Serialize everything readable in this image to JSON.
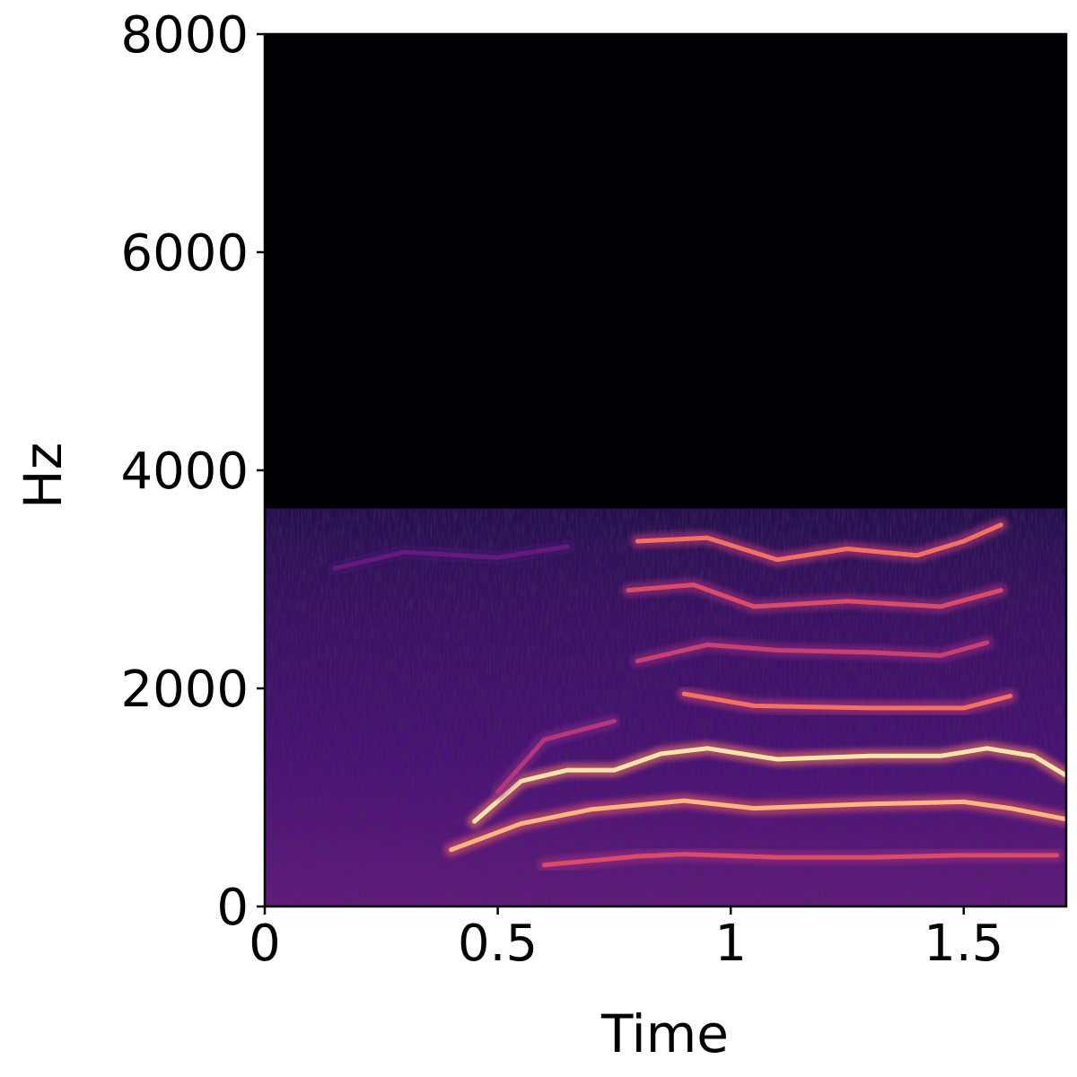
{
  "chart_data": {
    "type": "heatmap",
    "subtype": "spectrogram",
    "colormap": "magma",
    "xlabel": "Time",
    "ylabel": "Hz",
    "xlim": [
      0,
      1.72
    ],
    "ylim": [
      0,
      8000
    ],
    "x_ticks": [
      {
        "value": 0,
        "label": "0"
      },
      {
        "value": 0.5,
        "label": "0.5"
      },
      {
        "value": 1,
        "label": "1"
      },
      {
        "value": 1.5,
        "label": "1.5"
      }
    ],
    "y_ticks": [
      {
        "value": 0,
        "label": "0"
      },
      {
        "value": 2000,
        "label": "2000"
      },
      {
        "value": 4000,
        "label": "4000"
      },
      {
        "value": 6000,
        "label": "6000"
      },
      {
        "value": 8000,
        "label": "8000"
      }
    ],
    "energy_cutoff_hz": 3650,
    "harmonic_tracks": [
      {
        "points": [
          [
            0.6,
            380
          ],
          [
            0.8,
            460
          ],
          [
            0.9,
            480
          ],
          [
            1.1,
            450
          ],
          [
            1.3,
            450
          ],
          [
            1.5,
            470
          ],
          [
            1.7,
            470
          ]
        ],
        "intensity": 0.6
      },
      {
        "points": [
          [
            0.4,
            520
          ],
          [
            0.55,
            760
          ],
          [
            0.7,
            890
          ],
          [
            0.9,
            970
          ],
          [
            1.05,
            900
          ],
          [
            1.3,
            940
          ],
          [
            1.5,
            960
          ],
          [
            1.6,
            900
          ],
          [
            1.72,
            800
          ]
        ],
        "intensity": 0.85
      },
      {
        "points": [
          [
            0.45,
            780
          ],
          [
            0.55,
            1150
          ],
          [
            0.65,
            1250
          ],
          [
            0.75,
            1250
          ],
          [
            0.85,
            1400
          ],
          [
            0.95,
            1450
          ],
          [
            1.1,
            1350
          ],
          [
            1.3,
            1380
          ],
          [
            1.45,
            1380
          ],
          [
            1.55,
            1450
          ],
          [
            1.65,
            1380
          ],
          [
            1.72,
            1200
          ]
        ],
        "intensity": 0.95
      },
      {
        "points": [
          [
            0.5,
            1050
          ],
          [
            0.6,
            1530
          ],
          [
            0.75,
            1700
          ]
        ],
        "intensity": 0.5
      },
      {
        "points": [
          [
            0.9,
            1950
          ],
          [
            1.05,
            1840
          ],
          [
            1.3,
            1820
          ],
          [
            1.5,
            1820
          ],
          [
            1.6,
            1930
          ]
        ],
        "intensity": 0.7
      },
      {
        "points": [
          [
            0.8,
            2250
          ],
          [
            0.95,
            2400
          ],
          [
            1.1,
            2350
          ],
          [
            1.3,
            2330
          ],
          [
            1.45,
            2300
          ],
          [
            1.55,
            2420
          ]
        ],
        "intensity": 0.55
      },
      {
        "points": [
          [
            0.78,
            2900
          ],
          [
            0.92,
            2950
          ],
          [
            1.05,
            2750
          ],
          [
            1.25,
            2800
          ],
          [
            1.45,
            2750
          ],
          [
            1.58,
            2900
          ]
        ],
        "intensity": 0.6
      },
      {
        "points": [
          [
            0.8,
            3350
          ],
          [
            0.95,
            3380
          ],
          [
            1.1,
            3180
          ],
          [
            1.25,
            3280
          ],
          [
            1.4,
            3220
          ],
          [
            1.5,
            3350
          ],
          [
            1.58,
            3500
          ]
        ],
        "intensity": 0.7
      },
      {
        "points": [
          [
            0.15,
            3100
          ],
          [
            0.3,
            3250
          ],
          [
            0.5,
            3200
          ],
          [
            0.65,
            3300
          ]
        ],
        "intensity": 0.3
      }
    ]
  }
}
